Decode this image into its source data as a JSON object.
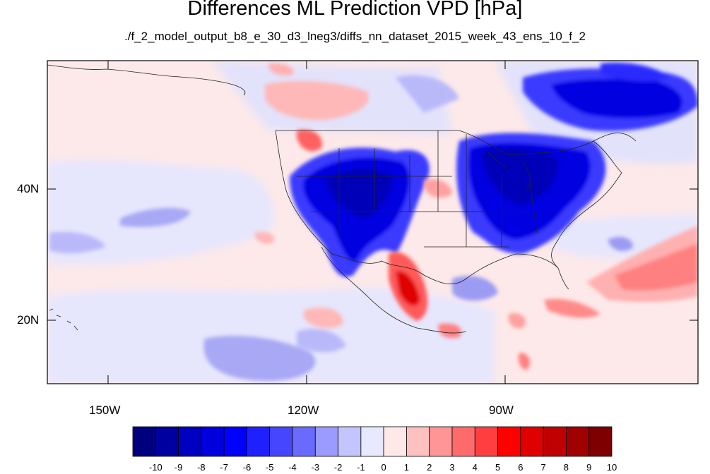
{
  "title": "Differences ML Prediction VPD [hPa]",
  "subtitle": "./f_2_model_output_b8_e_30_d3_lneg3/diffs_nn_dataset_2015_week_43_ens_10_f_2",
  "axes": {
    "lon_labels": [
      "150W",
      "120W",
      "90W"
    ],
    "lat_labels": [
      "40N",
      "20N"
    ],
    "lon_values": [
      -150,
      -120,
      -90
    ],
    "lat_values": [
      40,
      20
    ],
    "lon_range": [
      -159,
      -60
    ],
    "lat_range": [
      11,
      60
    ]
  },
  "colorbar": {
    "labels": [
      "-10",
      "-9",
      "-8",
      "-7",
      "-6",
      "-5",
      "-4",
      "-3",
      "-2",
      "-1",
      "0",
      "1",
      "2",
      "3",
      "4",
      "5",
      "6",
      "7",
      "8",
      "9",
      "10"
    ],
    "colors": [
      "#00007f",
      "#0000a0",
      "#0000c0",
      "#0000df",
      "#0000ff",
      "#2020ff",
      "#4646ff",
      "#6a6aff",
      "#9a9aff",
      "#c4c4ff",
      "#e8e8ff",
      "#ffe8e8",
      "#ffc0c0",
      "#ff9595",
      "#ff6a6a",
      "#ff3f3f",
      "#ff0000",
      "#df0000",
      "#c00000",
      "#a00000",
      "#7f0000"
    ]
  }
}
